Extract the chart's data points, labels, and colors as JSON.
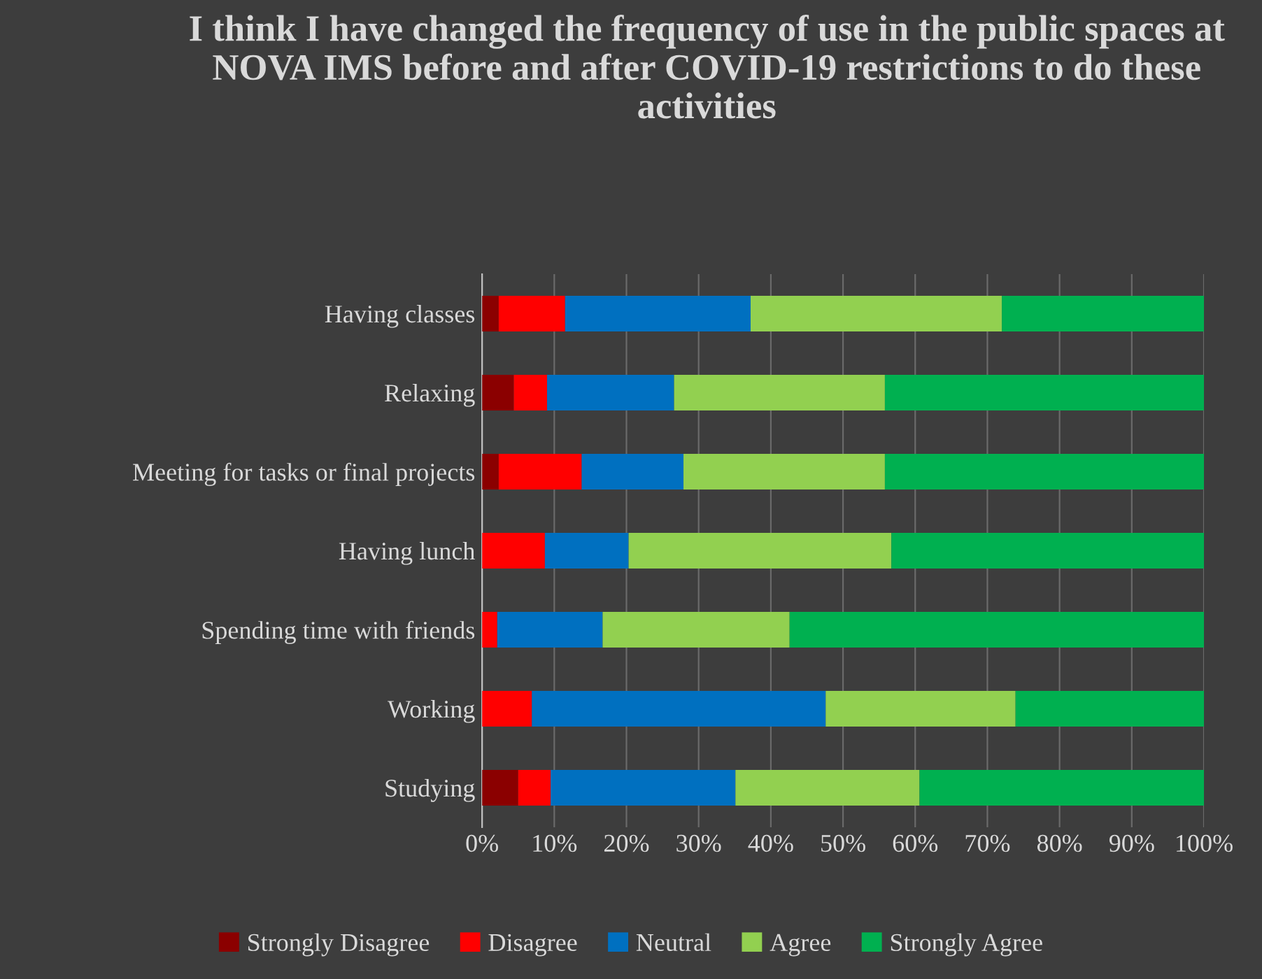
{
  "chart_data": {
    "type": "bar",
    "orientation": "horizontal",
    "stacked": true,
    "title": "I think I have changed the frequency of use in the public spaces at NOVA IMS before and after COVID-19 restrictions to do these activities",
    "categories": [
      "Having classes",
      "Relaxing",
      "Meeting for tasks or final projects",
      "Having lunch",
      "Spending time with friends",
      "Working",
      "Studying"
    ],
    "series": [
      {
        "name": "Strongly Disagree",
        "color": "#8b0000",
        "values": [
          2.3,
          4.4,
          2.3,
          0,
          0,
          0,
          5.0
        ]
      },
      {
        "name": "Disagree",
        "color": "#ff0000",
        "values": [
          9.2,
          4.6,
          11.5,
          8.7,
          2.1,
          6.9,
          4.5
        ]
      },
      {
        "name": "Neutral",
        "color": "#0070c0",
        "values": [
          25.7,
          17.6,
          14.1,
          11.6,
          14.6,
          40.7,
          25.6
        ]
      },
      {
        "name": "Agree",
        "color": "#92d050",
        "values": [
          34.8,
          29.2,
          27.9,
          36.4,
          25.9,
          26.3,
          25.5
        ]
      },
      {
        "name": "Strongly Agree",
        "color": "#00b050",
        "values": [
          28.0,
          44.2,
          44.2,
          43.3,
          57.4,
          26.1,
          39.4
        ]
      }
    ],
    "xlim": [
      0,
      100
    ],
    "xticks": [
      {
        "value": 0,
        "label": "0%"
      },
      {
        "value": 10,
        "label": "10%"
      },
      {
        "value": 20,
        "label": "20%"
      },
      {
        "value": 30,
        "label": "30%"
      },
      {
        "value": 40,
        "label": "40%"
      },
      {
        "value": 50,
        "label": "50%"
      },
      {
        "value": 60,
        "label": "60%"
      },
      {
        "value": 70,
        "label": "70%"
      },
      {
        "value": 80,
        "label": "80%"
      },
      {
        "value": 90,
        "label": "90%"
      },
      {
        "value": 100,
        "label": "100%"
      }
    ],
    "grid": "x",
    "legend": "bottom"
  }
}
